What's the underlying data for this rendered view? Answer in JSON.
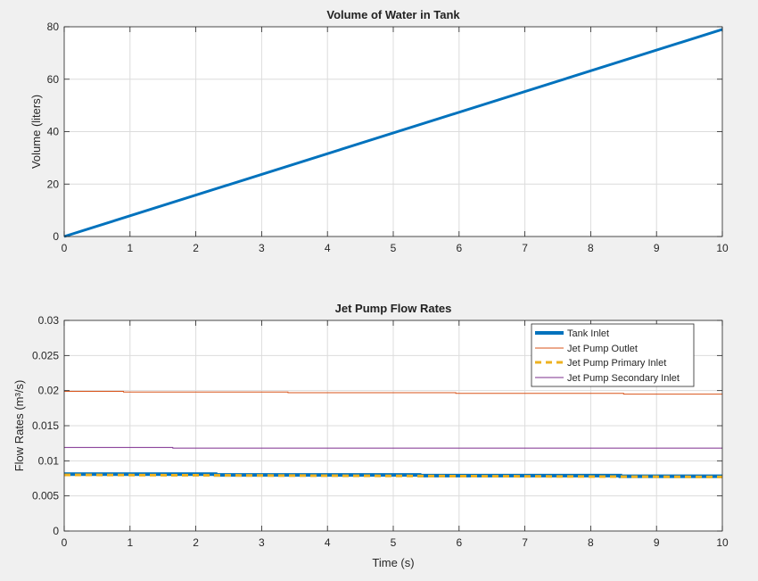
{
  "chart_data": [
    {
      "type": "line",
      "title": "Volume of Water in Tank",
      "xlabel": "",
      "ylabel": "Volume (liters)",
      "xlim": [
        0,
        10
      ],
      "ylim": [
        0,
        80
      ],
      "xticks": [
        "0",
        "1",
        "2",
        "3",
        "4",
        "5",
        "6",
        "7",
        "8",
        "9",
        "10"
      ],
      "yticks": [
        "0",
        "20",
        "40",
        "60",
        "80"
      ],
      "grid": true,
      "series": [
        {
          "color": "#0072BD",
          "x": [
            0,
            10
          ],
          "y": [
            0,
            79
          ]
        }
      ]
    },
    {
      "type": "line",
      "title": "Jet Pump Flow Rates",
      "xlabel": "Time (s)",
      "ylabel": "Flow Rates (m³/s)",
      "xlim": [
        0,
        10
      ],
      "ylim": [
        0,
        0.03
      ],
      "xticks": [
        "0",
        "1",
        "2",
        "3",
        "4",
        "5",
        "6",
        "7",
        "8",
        "9",
        "10"
      ],
      "yticks": [
        "0",
        "0.005",
        "0.01",
        "0.015",
        "0.02",
        "0.025",
        "0.03"
      ],
      "grid": true,
      "legend_position": "top-right",
      "series": [
        {
          "name": "Tank Inlet",
          "color": "#0072BD",
          "style": "thick-solid",
          "x": [
            0,
            2.3,
            2.3,
            5.4,
            5.4,
            8.45,
            8.45,
            10
          ],
          "y": [
            0.0081,
            0.0081,
            0.008,
            0.008,
            0.0079,
            0.0079,
            0.0078,
            0.0078
          ]
        },
        {
          "name": "Jet Pump Outlet",
          "color": "#D95319",
          "style": "thin-solid",
          "x": [
            0,
            0.9,
            0.9,
            3.4,
            3.4,
            5.95,
            5.95,
            8.5,
            8.5,
            10
          ],
          "y": [
            0.0199,
            0.0199,
            0.0198,
            0.0198,
            0.0197,
            0.0197,
            0.0196,
            0.0196,
            0.0195,
            0.0195
          ]
        },
        {
          "name": "Jet Pump Primary Inlet",
          "color": "#EDB120",
          "style": "dashed",
          "x": [
            0,
            10
          ],
          "y": [
            0.008,
            0.0077
          ]
        },
        {
          "name": "Jet Pump Secondary Inlet",
          "color": "#7E2F8E",
          "style": "thin-solid",
          "x": [
            0,
            1.65,
            1.65,
            10
          ],
          "y": [
            0.0119,
            0.0119,
            0.0118,
            0.0118
          ]
        }
      ]
    }
  ]
}
